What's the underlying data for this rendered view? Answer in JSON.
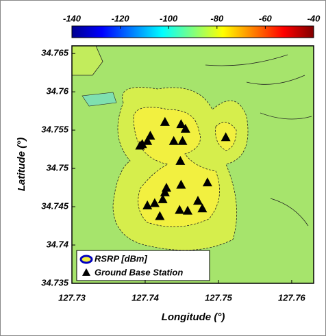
{
  "chart_data": {
    "type": "scatter",
    "xlabel": "Longitude (°)",
    "ylabel": "Latitude (°)",
    "xlim": [
      127.73,
      127.763
    ],
    "xticks": [
      127.73,
      127.74,
      127.75,
      127.76
    ],
    "ylim": [
      34.735,
      34.766
    ],
    "yticks": [
      34.735,
      34.74,
      34.745,
      34.75,
      34.755,
      34.76,
      34.765
    ],
    "field": {
      "name": "RSRP [dBm]",
      "clim": [
        -140,
        -40
      ],
      "cticks": [
        -140,
        -120,
        -100,
        -80,
        -60,
        -40
      ],
      "colormap": "jet"
    },
    "series": [
      {
        "name": "Ground Base Station",
        "color": "#000000",
        "marker": "triangle",
        "x": [
          127.7427,
          127.7449,
          127.7455,
          127.7407,
          127.7403,
          127.7396,
          127.7393,
          127.7439,
          127.7451,
          127.751,
          127.7448,
          127.7485,
          127.7449,
          127.7429,
          127.7427,
          127.7424,
          127.7413,
          127.7403,
          127.742,
          127.7447,
          127.7458,
          127.7472,
          127.7478
        ],
        "y": [
          34.7561,
          34.7558,
          34.7552,
          34.7543,
          34.7536,
          34.7532,
          34.753,
          34.7536,
          34.7536,
          34.7541,
          34.751,
          34.7482,
          34.7479,
          34.7475,
          34.7469,
          34.746,
          34.7455,
          34.7452,
          34.7438,
          34.7446,
          34.7445,
          34.7458,
          34.7448
        ]
      }
    ],
    "legend": "lower-left"
  }
}
